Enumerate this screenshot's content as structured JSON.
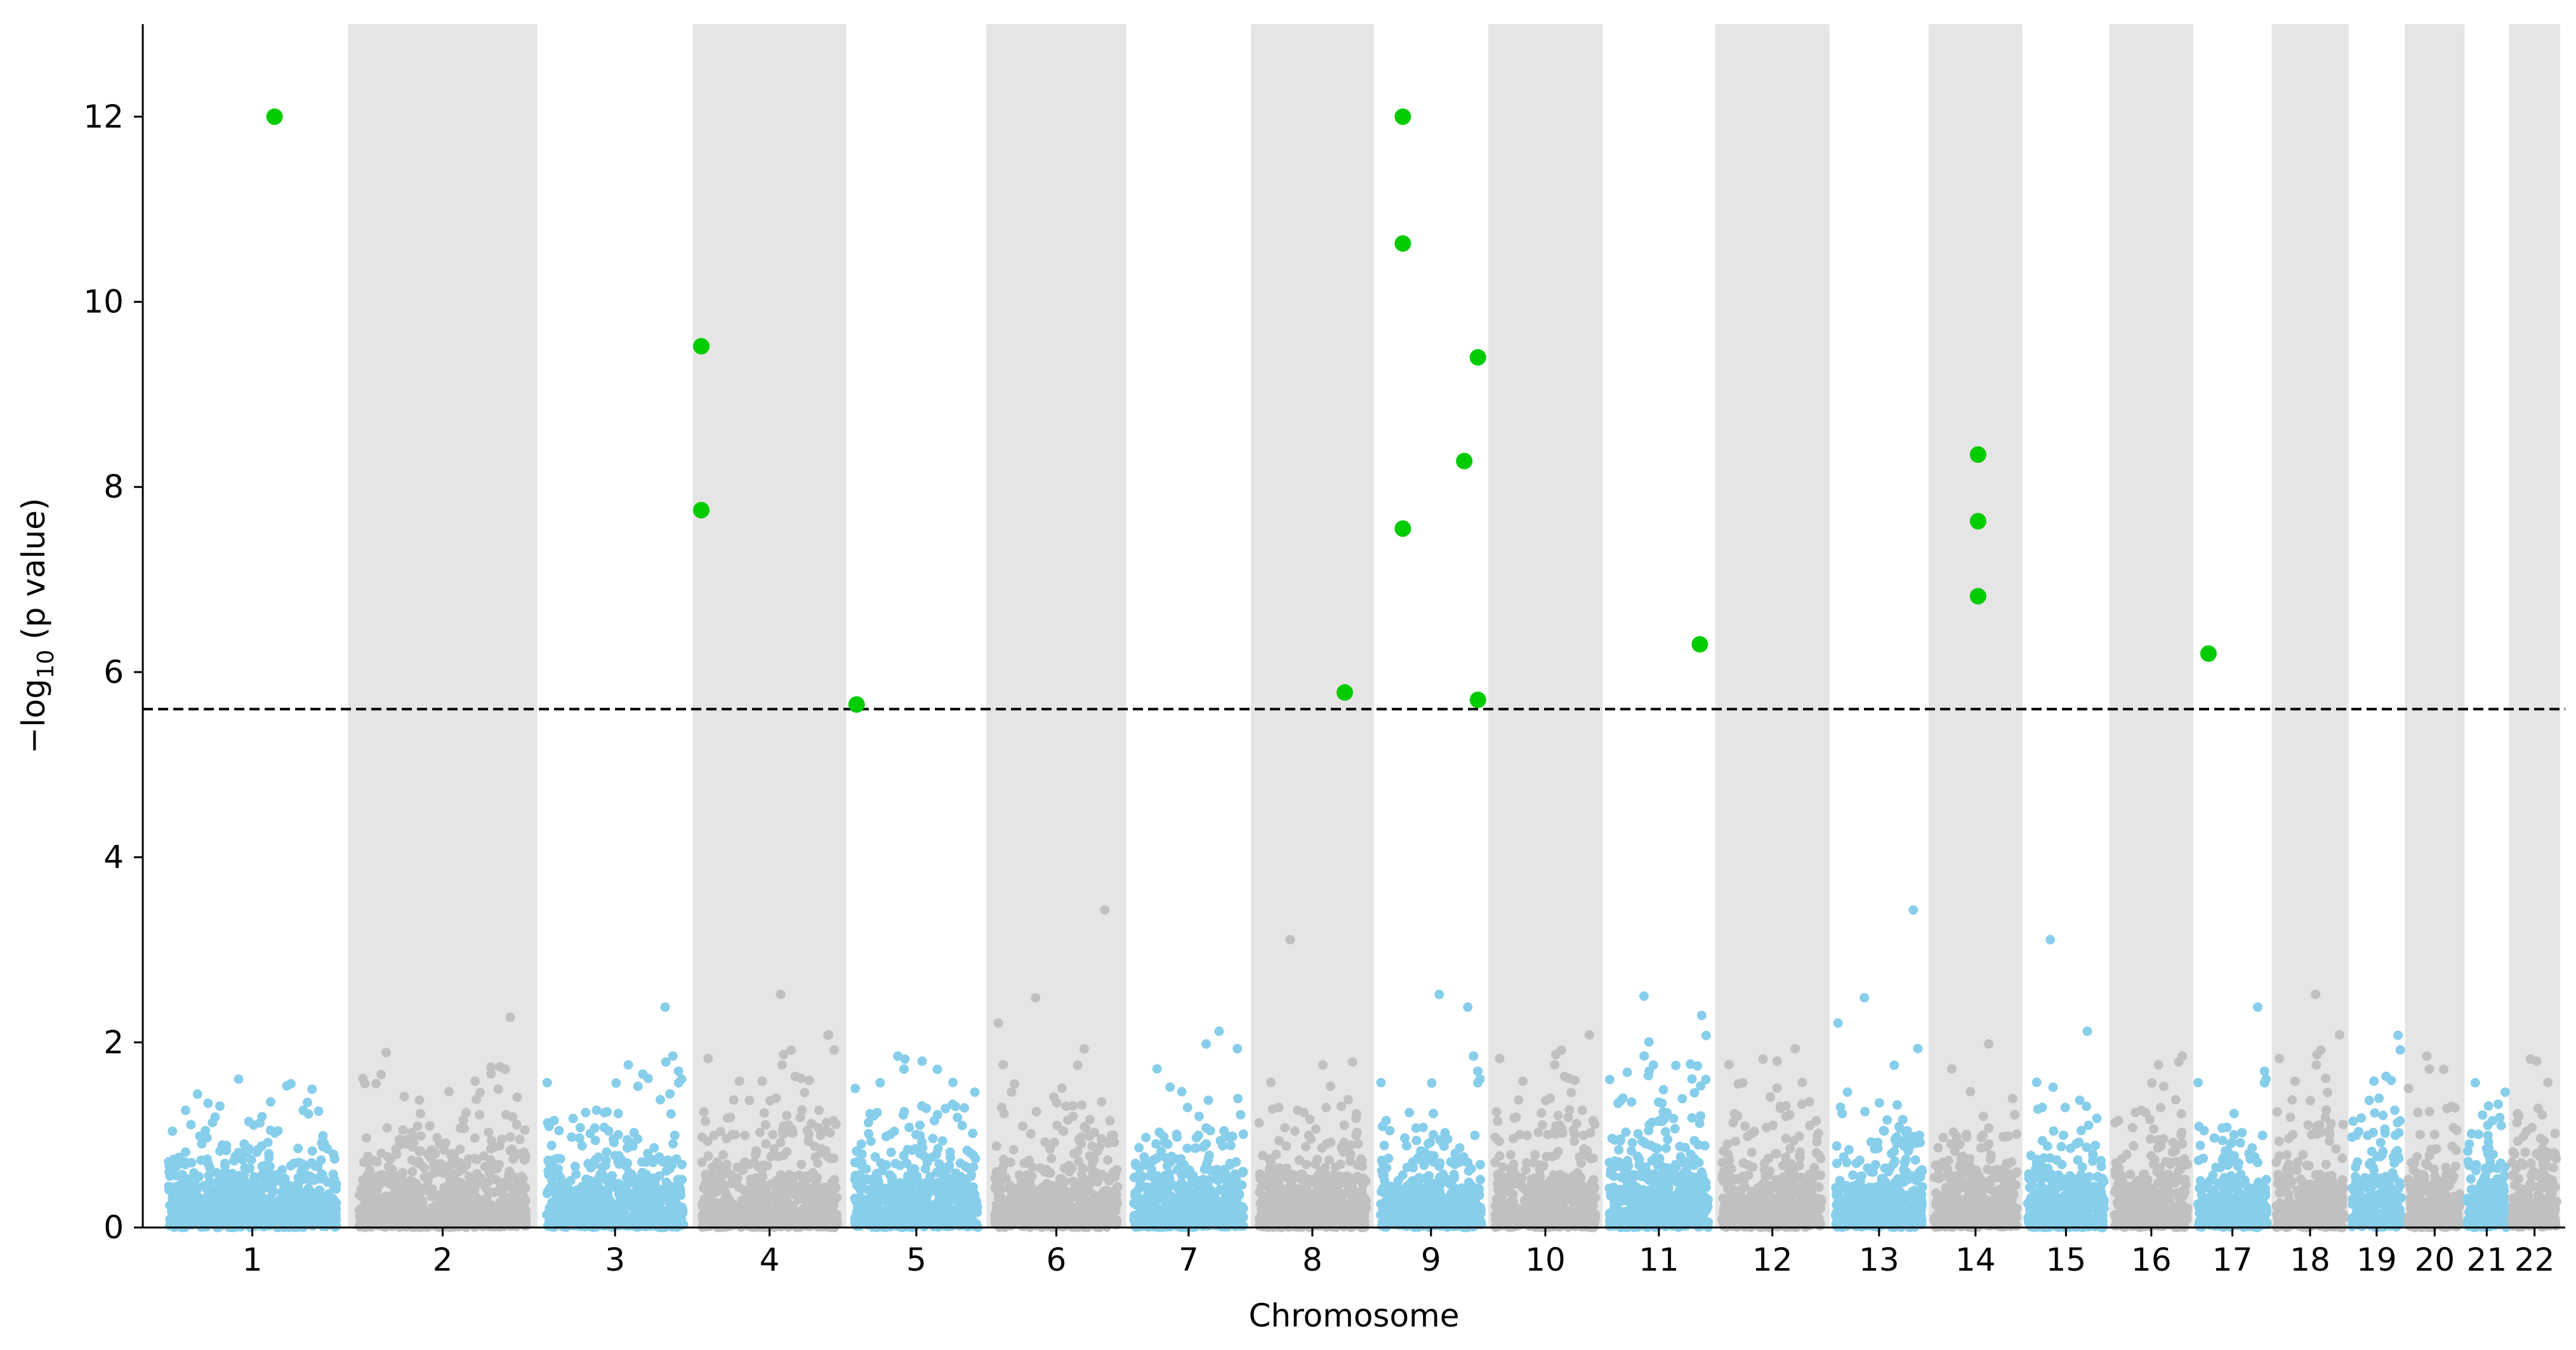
{
  "chart_data": {
    "type": "scatter",
    "subtype": "manhattan",
    "title": "",
    "xlabel": "Chromosome",
    "ylabel_prefix": "−log",
    "ylabel_sub": "10",
    "ylabel_suffix": " (p value)",
    "ylim": [
      0,
      13
    ],
    "yticks": [
      0,
      2,
      4,
      6,
      8,
      10,
      12
    ],
    "significance_threshold": 5.6,
    "chromosomes": [
      {
        "label": "1",
        "start": 0,
        "end": 1.12,
        "color": "#87ceeb"
      },
      {
        "label": "2",
        "start": 1.12,
        "end": 2.23,
        "color": "#c0c0c0"
      },
      {
        "label": "3",
        "start": 2.23,
        "end": 3.14,
        "color": "#87ceeb"
      },
      {
        "label": "4",
        "start": 3.14,
        "end": 4.04,
        "color": "#c0c0c0"
      },
      {
        "label": "5",
        "start": 4.04,
        "end": 4.86,
        "color": "#87ceeb"
      },
      {
        "label": "6",
        "start": 4.86,
        "end": 5.68,
        "color": "#c0c0c0"
      },
      {
        "label": "7",
        "start": 5.68,
        "end": 6.41,
        "color": "#87ceeb"
      },
      {
        "label": "8",
        "start": 6.41,
        "end": 7.13,
        "color": "#c0c0c0"
      },
      {
        "label": "9",
        "start": 7.13,
        "end": 7.8,
        "color": "#87ceeb"
      },
      {
        "label": "10",
        "start": 7.8,
        "end": 8.47,
        "color": "#c0c0c0"
      },
      {
        "label": "11",
        "start": 8.47,
        "end": 9.13,
        "color": "#87ceeb"
      },
      {
        "label": "12",
        "start": 9.13,
        "end": 9.8,
        "color": "#c0c0c0"
      },
      {
        "label": "13",
        "start": 9.8,
        "end": 10.38,
        "color": "#87ceeb"
      },
      {
        "label": "14",
        "start": 10.38,
        "end": 10.93,
        "color": "#c0c0c0"
      },
      {
        "label": "15",
        "start": 10.93,
        "end": 11.44,
        "color": "#87ceeb"
      },
      {
        "label": "16",
        "start": 11.44,
        "end": 11.93,
        "color": "#c0c0c0"
      },
      {
        "label": "17",
        "start": 11.93,
        "end": 12.39,
        "color": "#87ceeb"
      },
      {
        "label": "18",
        "start": 12.39,
        "end": 12.84,
        "color": "#c0c0c0"
      },
      {
        "label": "19",
        "start": 12.84,
        "end": 13.17,
        "color": "#87ceeb"
      },
      {
        "label": "20",
        "start": 13.17,
        "end": 13.52,
        "color": "#c0c0c0"
      },
      {
        "label": "21",
        "start": 13.52,
        "end": 13.78,
        "color": "#87ceeb"
      },
      {
        "label": "22",
        "start": 13.78,
        "end": 14.08,
        "color": "#c0c0c0"
      }
    ],
    "significant_points": [
      {
        "chr": "1",
        "x": 0.69,
        "y": 12.0
      },
      {
        "chr": "4",
        "x": 3.19,
        "y": 9.52
      },
      {
        "chr": "4",
        "x": 3.19,
        "y": 7.75
      },
      {
        "chr": "5",
        "x": 4.1,
        "y": 5.65
      },
      {
        "chr": "8",
        "x": 6.96,
        "y": 5.78
      },
      {
        "chr": "9",
        "x": 7.3,
        "y": 12.0
      },
      {
        "chr": "9",
        "x": 7.3,
        "y": 10.63
      },
      {
        "chr": "9",
        "x": 7.3,
        "y": 7.55
      },
      {
        "chr": "9",
        "x": 7.66,
        "y": 8.28
      },
      {
        "chr": "9",
        "x": 7.74,
        "y": 9.4
      },
      {
        "chr": "9",
        "x": 7.74,
        "y": 5.7
      },
      {
        "chr": "11",
        "x": 9.04,
        "y": 6.3
      },
      {
        "chr": "14",
        "x": 10.67,
        "y": 8.35
      },
      {
        "chr": "14",
        "x": 10.67,
        "y": 7.63
      },
      {
        "chr": "14",
        "x": 10.67,
        "y": 6.82
      },
      {
        "chr": "17",
        "x": 12.02,
        "y": 6.2
      }
    ],
    "highlight_color": "#00cc00",
    "band_color": "#e5e5e5",
    "threshold_color": "#000000"
  }
}
